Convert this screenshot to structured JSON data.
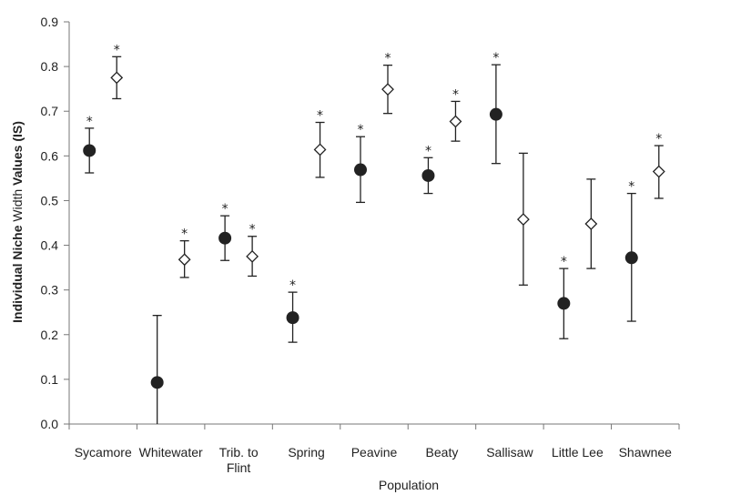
{
  "chart_data": {
    "type": "scatter",
    "title": "",
    "xlabel": "Population",
    "ylabel_parts": {
      "bold1": "Individual Niche",
      "plain": " Width",
      "bold2": " Values (IS)"
    },
    "ylim": [
      0,
      0.9
    ],
    "yticks": [
      "0.0",
      "0.1",
      "0.2",
      "0.3",
      "0.4",
      "0.5",
      "0.6",
      "0.7",
      "0.8",
      "0.9"
    ],
    "grid": false,
    "legend": "none",
    "categories": [
      {
        "label": [
          "Sycamore"
        ]
      },
      {
        "label": [
          "Whitewater"
        ]
      },
      {
        "label": [
          "Trib. to",
          "Flint"
        ]
      },
      {
        "label": [
          "Spring"
        ]
      },
      {
        "label": [
          "Peavine"
        ]
      },
      {
        "label": [
          "Beaty"
        ]
      },
      {
        "label": [
          "Sallisaw"
        ]
      },
      {
        "label": [
          "Little Lee"
        ]
      },
      {
        "label": [
          "Shawnee"
        ]
      }
    ],
    "star_symbol": "*",
    "series": [
      {
        "marker": "filled-circle",
        "color": "#222222",
        "points": [
          {
            "y": 0.612,
            "low": 0.562,
            "high": 0.662,
            "sig": true
          },
          {
            "y": 0.093,
            "low": 0.0,
            "high": 0.243,
            "sig": false
          },
          {
            "y": 0.416,
            "low": 0.366,
            "high": 0.466,
            "sig": true
          },
          {
            "y": 0.238,
            "low": 0.183,
            "high": 0.295,
            "sig": true
          },
          {
            "y": 0.569,
            "low": 0.496,
            "high": 0.643,
            "sig": true
          },
          {
            "y": 0.556,
            "low": 0.516,
            "high": 0.596,
            "sig": true
          },
          {
            "y": 0.693,
            "low": 0.583,
            "high": 0.804,
            "sig": true
          },
          {
            "y": 0.27,
            "low": 0.191,
            "high": 0.348,
            "sig": true
          },
          {
            "y": 0.372,
            "low": 0.23,
            "high": 0.516,
            "sig": true
          }
        ]
      },
      {
        "marker": "open-diamond",
        "color": "#222222",
        "points": [
          {
            "y": 0.775,
            "low": 0.728,
            "high": 0.822,
            "sig": true
          },
          {
            "y": 0.368,
            "low": 0.328,
            "high": 0.41,
            "sig": true
          },
          {
            "y": 0.375,
            "low": 0.331,
            "high": 0.42,
            "sig": true
          },
          {
            "y": 0.614,
            "low": 0.552,
            "high": 0.675,
            "sig": true
          },
          {
            "y": 0.749,
            "low": 0.695,
            "high": 0.803,
            "sig": true
          },
          {
            "y": 0.677,
            "low": 0.633,
            "high": 0.722,
            "sig": true
          },
          {
            "y": 0.458,
            "low": 0.311,
            "high": 0.606,
            "sig": false
          },
          {
            "y": 0.448,
            "low": 0.348,
            "high": 0.548,
            "sig": false
          },
          {
            "y": 0.565,
            "low": 0.505,
            "high": 0.623,
            "sig": true
          }
        ]
      }
    ]
  }
}
